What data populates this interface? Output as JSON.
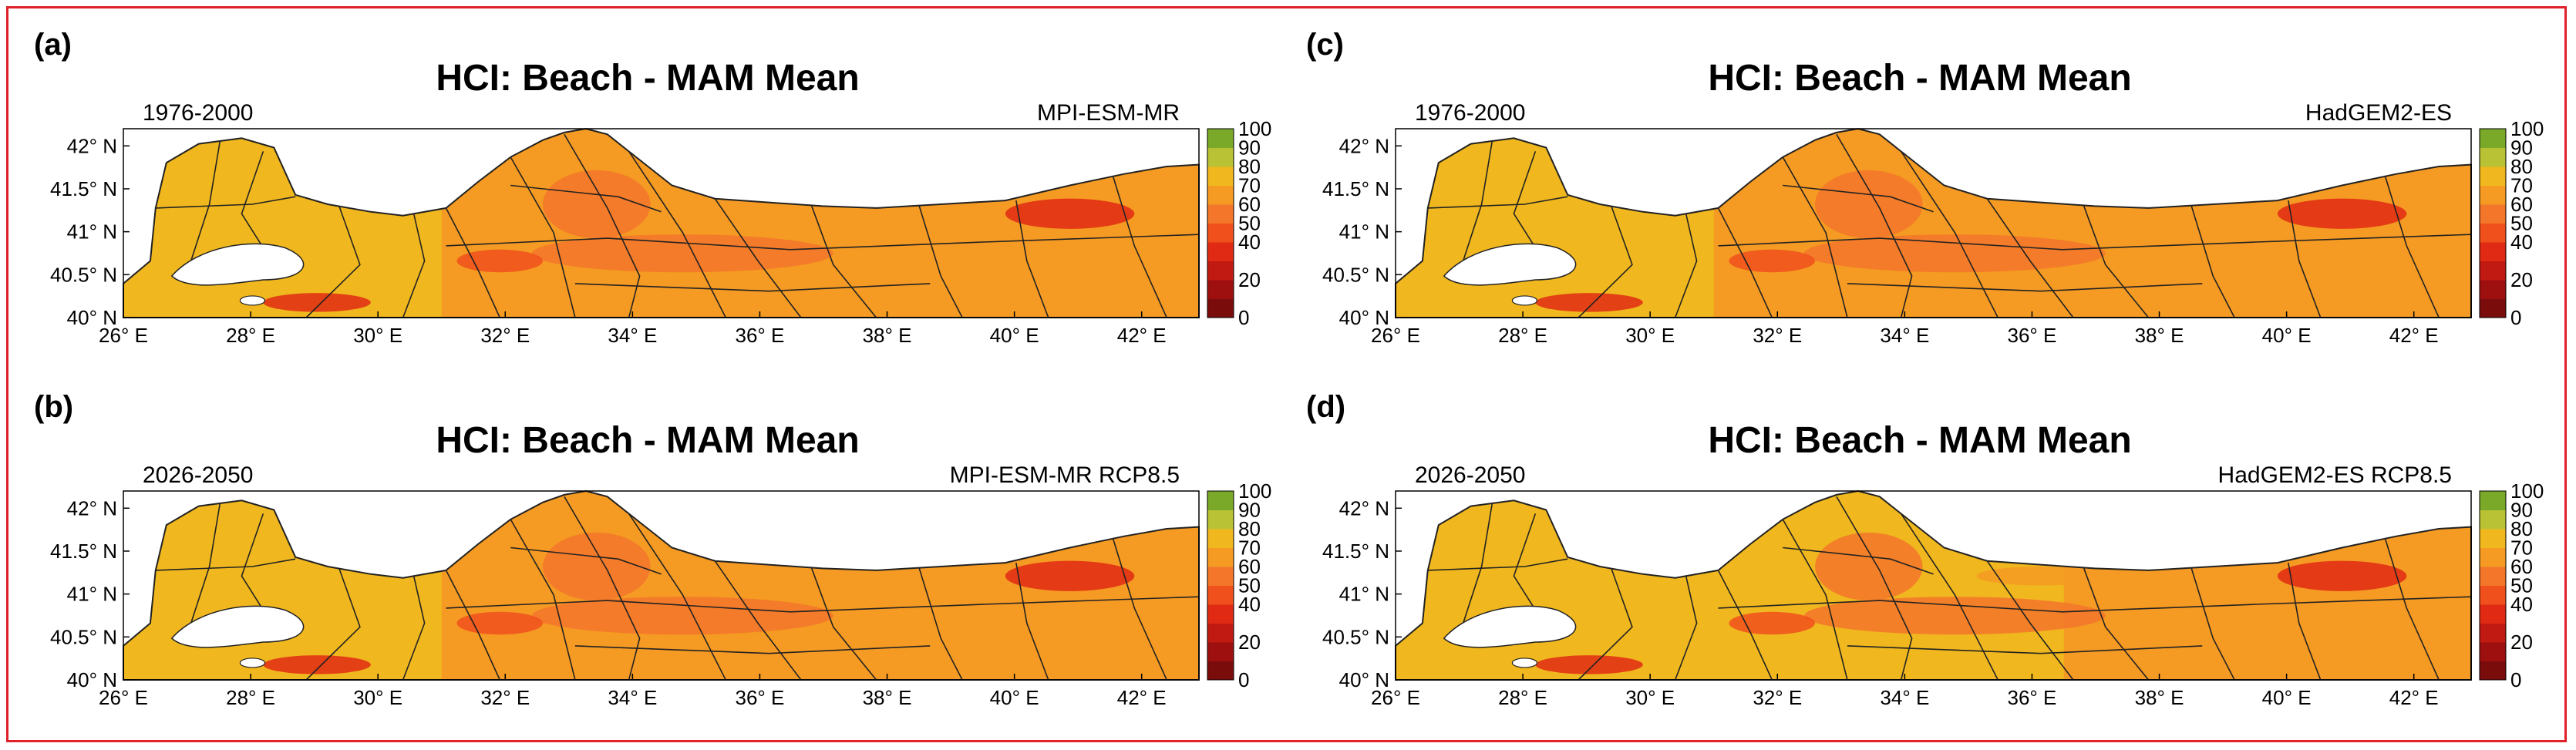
{
  "chart_data": [
    {
      "type": "heatmap",
      "panel_label": "(a)",
      "title": "HCI: Beach - MAM Mean",
      "period": "1976-2000",
      "model": "MPI-ESM-MR",
      "x_ticks": [
        "26° E",
        "28° E",
        "30° E",
        "32° E",
        "34° E",
        "36° E",
        "38° E",
        "40° E",
        "42° E"
      ],
      "y_ticks": [
        "42° N",
        "41.5° N",
        "41° N",
        "40.5° N",
        "40° N"
      ],
      "xlim": [
        26,
        42.9
      ],
      "ylim": [
        40,
        42.2
      ],
      "colorbar": {
        "ticks": [
          "100",
          "90",
          "80",
          "70",
          "60",
          "50",
          "40",
          "20",
          "0"
        ],
        "range": [
          0,
          100
        ]
      },
      "regions": [
        {
          "name": "west",
          "lon_range": [
            26,
            31
          ],
          "value": 75
        },
        {
          "name": "central",
          "lon_range": [
            31,
            36.5
          ],
          "value": 65
        },
        {
          "name": "east",
          "lon_range": [
            36.5,
            42.9
          ],
          "value": 65
        }
      ]
    },
    {
      "type": "heatmap",
      "panel_label": "(c)",
      "title": "HCI: Beach - MAM Mean",
      "period": "1976-2000",
      "model": "HadGEM2-ES",
      "x_ticks": [
        "26° E",
        "28° E",
        "30° E",
        "32° E",
        "34° E",
        "36° E",
        "38° E",
        "40° E",
        "42° E"
      ],
      "y_ticks": [
        "42° N",
        "41.5° N",
        "41° N",
        "40.5° N",
        "40° N"
      ],
      "xlim": [
        26,
        42.9
      ],
      "ylim": [
        40,
        42.2
      ],
      "colorbar": {
        "ticks": [
          "100",
          "90",
          "80",
          "70",
          "60",
          "50",
          "40",
          "20",
          "0"
        ],
        "range": [
          0,
          100
        ]
      },
      "regions": [
        {
          "name": "west",
          "lon_range": [
            26,
            31
          ],
          "value": 75
        },
        {
          "name": "central",
          "lon_range": [
            31,
            36.5
          ],
          "value": 68
        },
        {
          "name": "east",
          "lon_range": [
            36.5,
            42.9
          ],
          "value": 65
        }
      ]
    },
    {
      "type": "heatmap",
      "panel_label": "(b)",
      "title": "HCI: Beach - MAM Mean",
      "period": "2026-2050",
      "model": "MPI-ESM-MR RCP8.5",
      "x_ticks": [
        "26° E",
        "28° E",
        "30° E",
        "32° E",
        "34° E",
        "36° E",
        "38° E",
        "40° E",
        "42° E"
      ],
      "y_ticks": [
        "42° N",
        "41.5° N",
        "41° N",
        "40.5° N",
        "40° N"
      ],
      "xlim": [
        26,
        42.9
      ],
      "ylim": [
        40,
        42.2
      ],
      "colorbar": {
        "ticks": [
          "100",
          "90",
          "80",
          "70",
          "60",
          "50",
          "40",
          "20",
          "0"
        ],
        "range": [
          0,
          100
        ]
      },
      "regions": [
        {
          "name": "west",
          "lon_range": [
            26,
            31
          ],
          "value": 75
        },
        {
          "name": "central",
          "lon_range": [
            31,
            36.5
          ],
          "value": 68
        },
        {
          "name": "east",
          "lon_range": [
            36.5,
            42.9
          ],
          "value": 66
        }
      ]
    },
    {
      "type": "heatmap",
      "panel_label": "(d)",
      "title": "HCI: Beach - MAM Mean",
      "period": "2026-2050",
      "model": "HadGEM2-ES RCP8.5",
      "x_ticks": [
        "26° E",
        "28° E",
        "30° E",
        "32° E",
        "34° E",
        "36° E",
        "38° E",
        "40° E",
        "42° E"
      ],
      "y_ticks": [
        "42° N",
        "41.5° N",
        "41° N",
        "40.5° N",
        "40° N"
      ],
      "xlim": [
        26,
        42.9
      ],
      "ylim": [
        40,
        42.2
      ],
      "colorbar": {
        "ticks": [
          "100",
          "90",
          "80",
          "70",
          "60",
          "50",
          "40",
          "20",
          "0"
        ],
        "range": [
          0,
          100
        ]
      },
      "regions": [
        {
          "name": "west",
          "lon_range": [
            26,
            31
          ],
          "value": 75
        },
        {
          "name": "central",
          "lon_range": [
            31,
            36.5
          ],
          "value": 72
        },
        {
          "name": "east",
          "lon_range": [
            36.5,
            42.9
          ],
          "value": 66
        }
      ]
    }
  ],
  "colors": {
    "frame": "#e0202a",
    "sea": "#ffffff",
    "border": "#222222",
    "scale": [
      "#7a0c0c",
      "#9e1010",
      "#c01a12",
      "#e02a14",
      "#f0501c",
      "#f3762a",
      "#f59a22",
      "#f0b81e",
      "#b9c234",
      "#7aa828"
    ]
  }
}
